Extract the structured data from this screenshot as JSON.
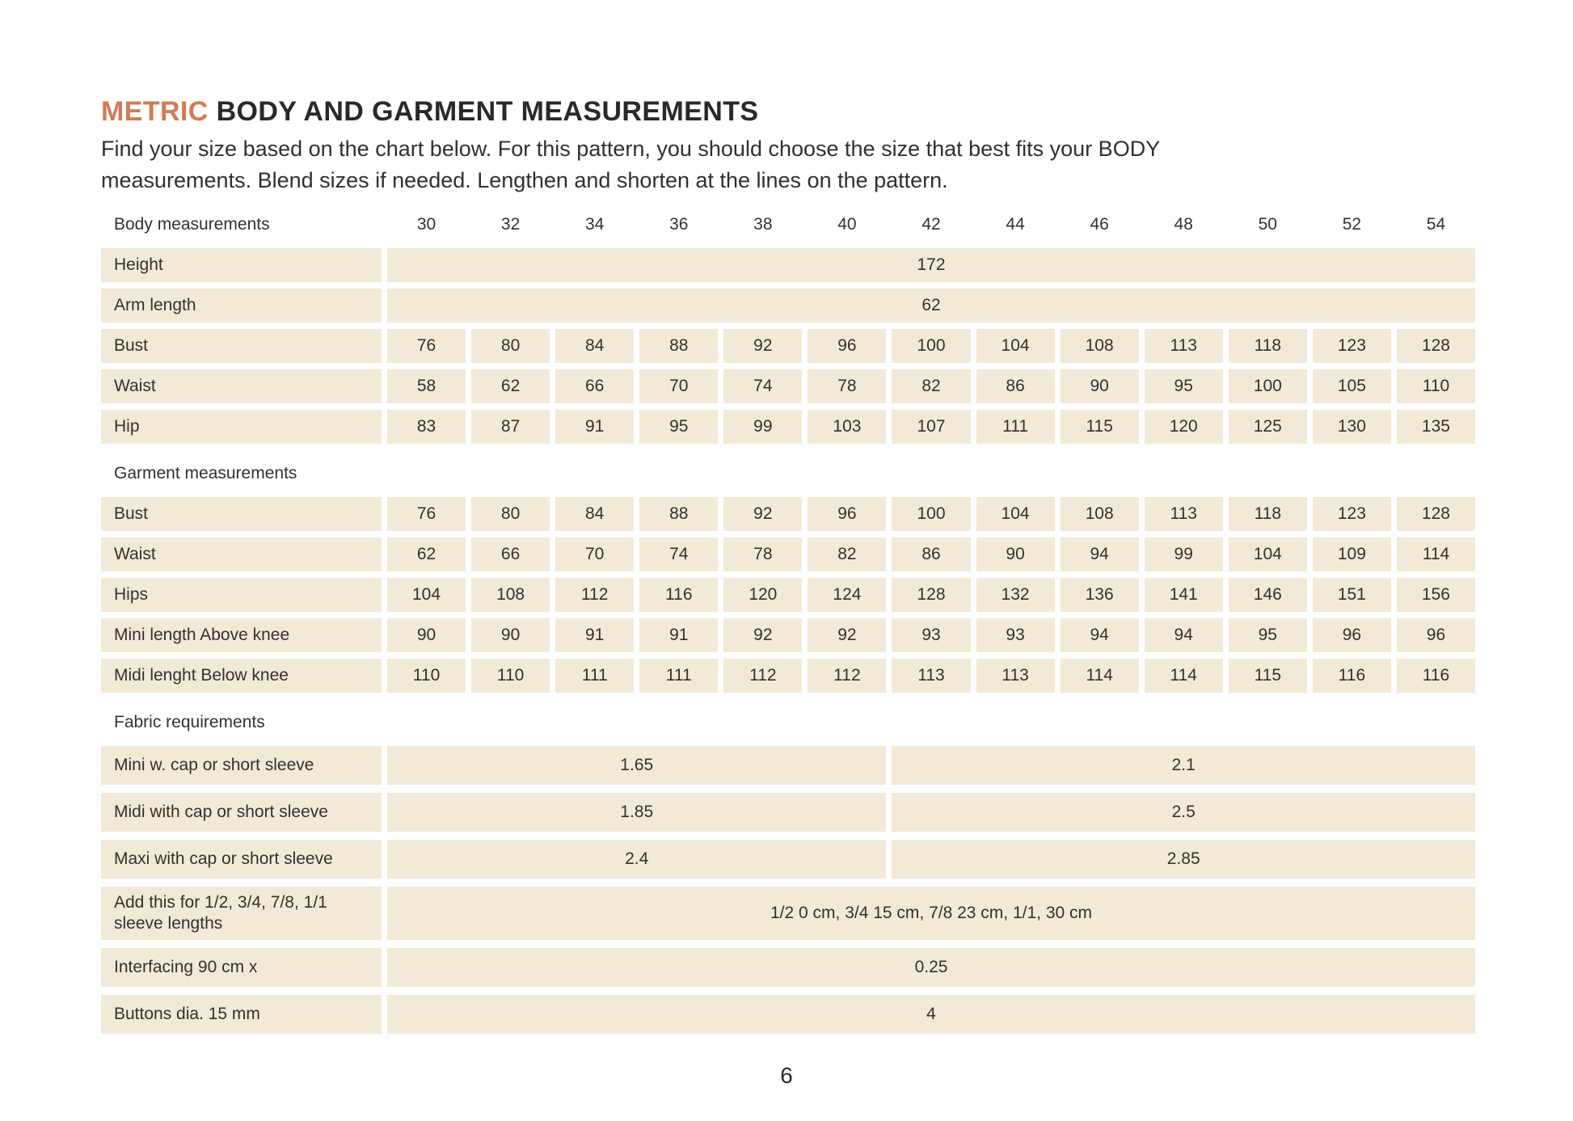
{
  "page": {
    "title_accent": "METRIC",
    "title_rest": "BODY AND GARMENT MEASUREMENTS",
    "subtitle_line1": "Find your size based on the chart below. For this pattern, you should choose the size that best fits your BODY",
    "subtitle_line2": "measurements. Blend sizes if needed. Lengthen and shorten at the lines on the pattern.",
    "page_number": "6"
  },
  "colors": {
    "accent": "#d27b52",
    "cell_bg": "#f2ead7",
    "text": "#2f2d2a"
  },
  "table": {
    "header_label": "Body measurements",
    "sizes": [
      "30",
      "32",
      "34",
      "36",
      "38",
      "40",
      "42",
      "44",
      "46",
      "48",
      "50",
      "52",
      "54"
    ],
    "body_rows": [
      {
        "label": "Height",
        "span_value": "172"
      },
      {
        "label": "Arm length",
        "span_value": "62"
      },
      {
        "label": "Bust",
        "values": [
          "76",
          "80",
          "84",
          "88",
          "92",
          "96",
          "100",
          "104",
          "108",
          "113",
          "118",
          "123",
          "128"
        ]
      },
      {
        "label": "Waist",
        "values": [
          "58",
          "62",
          "66",
          "70",
          "74",
          "78",
          "82",
          "86",
          "90",
          "95",
          "100",
          "105",
          "110"
        ]
      },
      {
        "label": "Hip",
        "values": [
          "83",
          "87",
          "91",
          "95",
          "99",
          "103",
          "107",
          "111",
          "115",
          "120",
          "125",
          "130",
          "135"
        ]
      }
    ],
    "garment_section_label": "Garment measurements",
    "garment_rows": [
      {
        "label": "Bust",
        "values": [
          "76",
          "80",
          "84",
          "88",
          "92",
          "96",
          "100",
          "104",
          "108",
          "113",
          "118",
          "123",
          "128"
        ]
      },
      {
        "label": "Waist",
        "values": [
          "62",
          "66",
          "70",
          "74",
          "78",
          "82",
          "86",
          "90",
          "94",
          "99",
          "104",
          "109",
          "114"
        ]
      },
      {
        "label": "Hips",
        "values": [
          "104",
          "108",
          "112",
          "116",
          "120",
          "124",
          "128",
          "132",
          "136",
          "141",
          "146",
          "151",
          "156"
        ]
      },
      {
        "label": "Mini length Above knee",
        "values": [
          "90",
          "90",
          "91",
          "91",
          "92",
          "92",
          "93",
          "93",
          "94",
          "94",
          "95",
          "96",
          "96"
        ]
      },
      {
        "label": "Midi lenght Below knee",
        "values": [
          "110",
          "110",
          "111",
          "111",
          "112",
          "112",
          "113",
          "113",
          "114",
          "114",
          "115",
          "116",
          "116"
        ]
      }
    ],
    "fabric_section_label": "Fabric requirements",
    "fabric_split_rows": [
      {
        "label": "Mini w. cap or short sleeve",
        "left": "1.65",
        "right": "2.1"
      },
      {
        "label": "Midi with cap or short sleeve",
        "left": "1.85",
        "right": "2.5"
      },
      {
        "label": "Maxi with cap or short sleeve",
        "left": "2.4",
        "right": "2.85"
      }
    ],
    "fabric_full_rows": [
      {
        "label": "Add this for 1/2, 3/4, 7/8, 1/1 sleeve lengths",
        "value": "1/2 0 cm, 3/4 15 cm, 7/8 23 cm, 1/1, 30 cm"
      },
      {
        "label": "Interfacing 90 cm x",
        "value": "0.25"
      },
      {
        "label": "Buttons dia. 15 mm",
        "value": "4"
      }
    ]
  }
}
